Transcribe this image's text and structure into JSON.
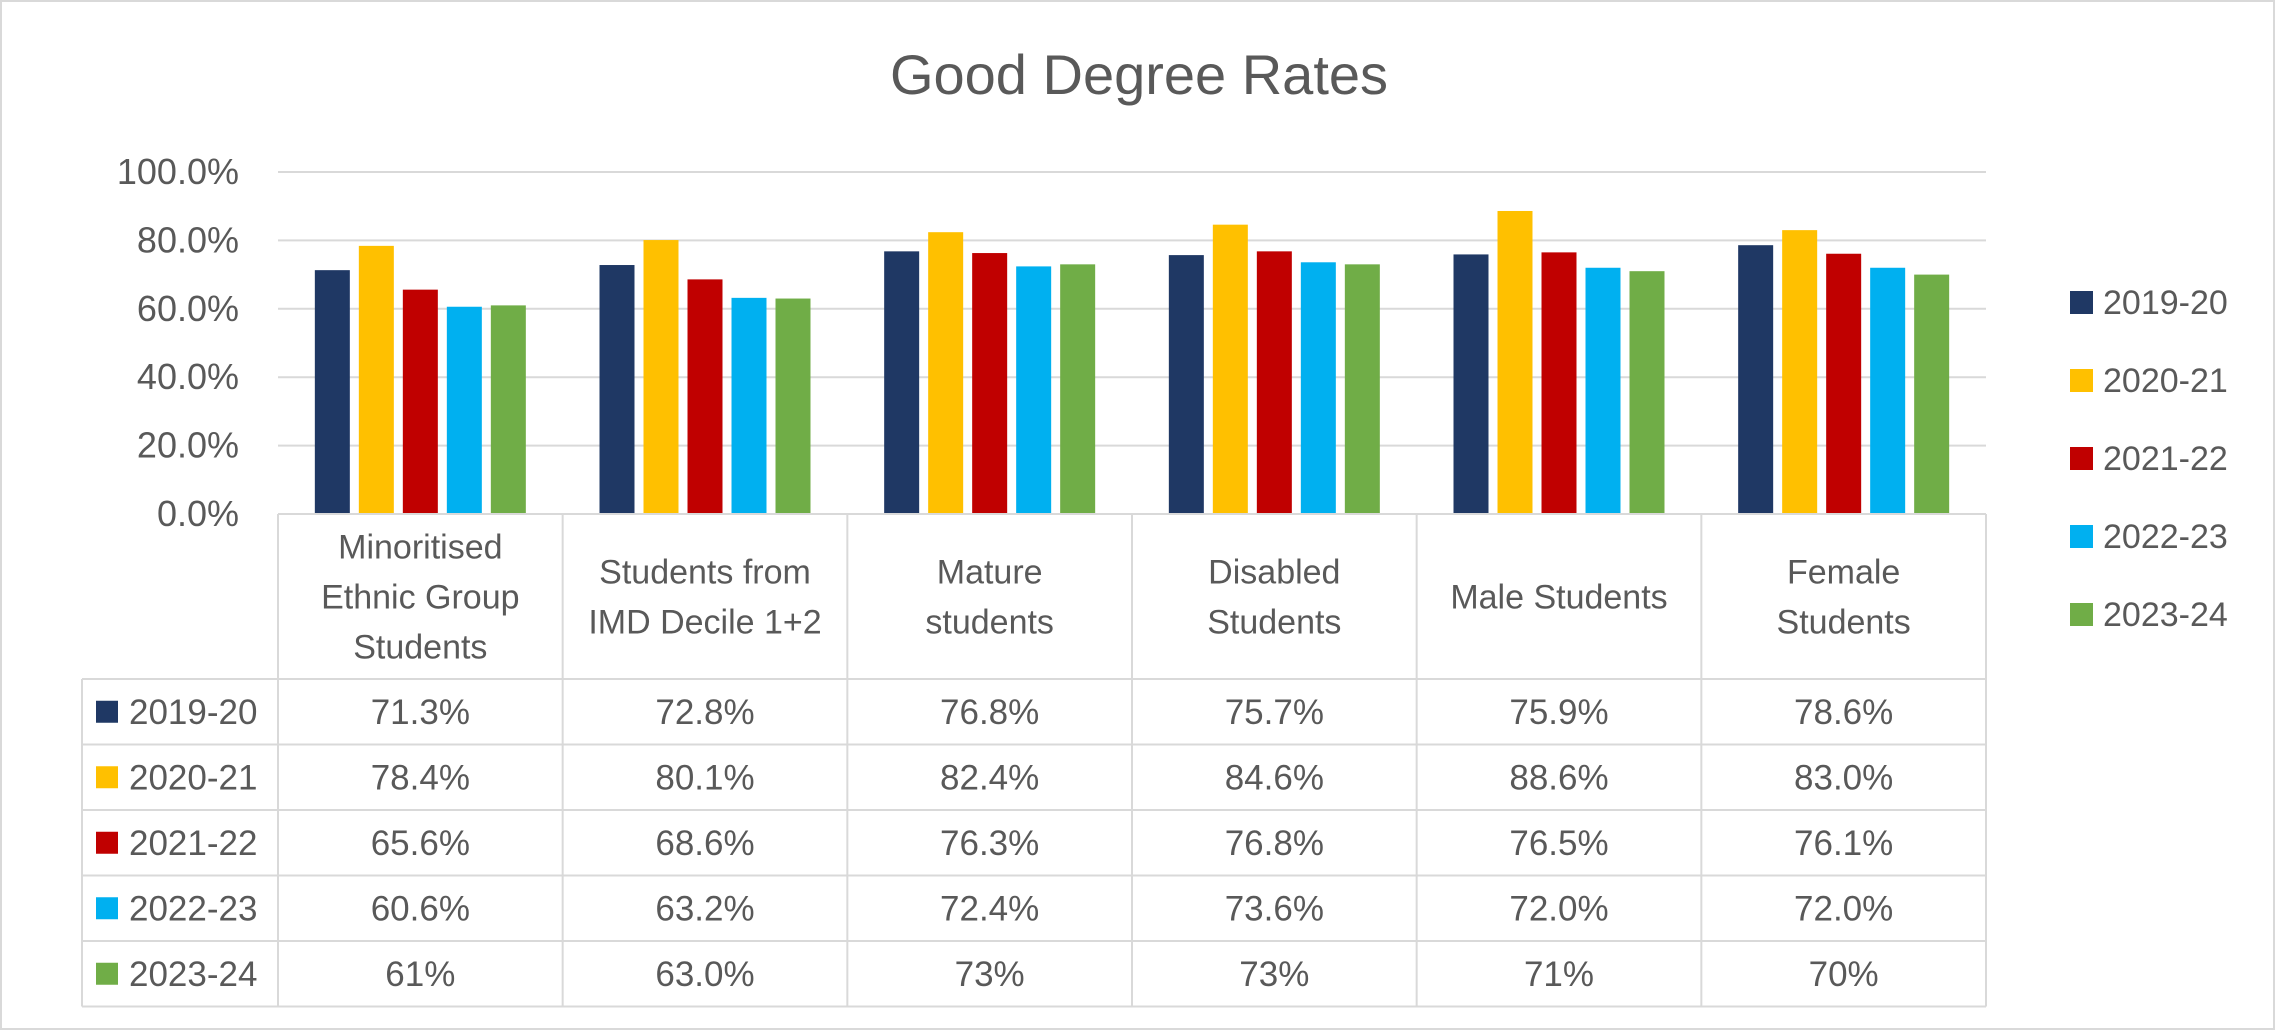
{
  "chart_data": {
    "type": "bar",
    "title": "Good Degree Rates",
    "categories": [
      [
        "Minoritised",
        "Ethnic Group",
        "Students"
      ],
      [
        "Students from",
        "IMD Decile 1+2"
      ],
      [
        "Mature",
        "students"
      ],
      [
        "Disabled",
        "Students"
      ],
      [
        "Male Students"
      ],
      [
        "Female",
        "Students"
      ]
    ],
    "ylim": [
      0,
      100
    ],
    "yticks": [
      "0.0%",
      "20.0%",
      "40.0%",
      "60.0%",
      "80.0%",
      "100.0%"
    ],
    "grid": true,
    "legend_position": "right",
    "series": [
      {
        "name": "2019-20",
        "color": "#1f3864",
        "values": [
          71.3,
          72.8,
          76.8,
          75.7,
          75.9,
          78.6
        ],
        "labels": [
          "71.3%",
          "72.8%",
          "76.8%",
          "75.7%",
          "75.9%",
          "78.6%"
        ]
      },
      {
        "name": "2020-21",
        "color": "#ffc000",
        "values": [
          78.4,
          80.1,
          82.4,
          84.6,
          88.6,
          83.0
        ],
        "labels": [
          "78.4%",
          "80.1%",
          "82.4%",
          "84.6%",
          "88.6%",
          "83.0%"
        ]
      },
      {
        "name": "2021-22",
        "color": "#c00000",
        "values": [
          65.6,
          68.6,
          76.3,
          76.8,
          76.5,
          76.1
        ],
        "labels": [
          "65.6%",
          "68.6%",
          "76.3%",
          "76.8%",
          "76.5%",
          "76.1%"
        ]
      },
      {
        "name": "2022-23",
        "color": "#00b0f0",
        "values": [
          60.6,
          63.2,
          72.4,
          73.6,
          72.0,
          72.0
        ],
        "labels": [
          "60.6%",
          "63.2%",
          "72.4%",
          "73.6%",
          "72.0%",
          "72.0%"
        ]
      },
      {
        "name": "2023-24",
        "color": "#70ad47",
        "values": [
          61,
          63.0,
          73,
          73,
          71,
          70
        ],
        "labels": [
          "61%",
          "63.0%",
          "73%",
          "73%",
          "71%",
          "70%"
        ]
      }
    ]
  }
}
